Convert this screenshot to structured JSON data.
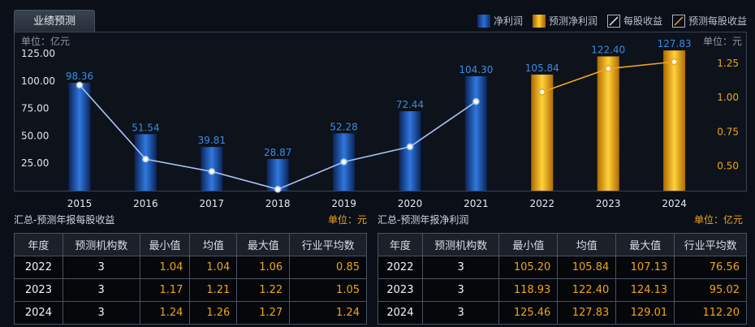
{
  "tab": {
    "label": "业绩预测"
  },
  "legend": [
    {
      "label": "净利润",
      "icon": "blue-bar-swatch"
    },
    {
      "label": "预测净利润",
      "icon": "gold-bar-swatch"
    },
    {
      "label": "每股收益",
      "icon": "white-line-swatch"
    },
    {
      "label": "预测每股收益",
      "icon": "orange-line-swatch"
    }
  ],
  "chart_data": {
    "type": "bar",
    "categories": [
      "2015",
      "2016",
      "2017",
      "2018",
      "2019",
      "2020",
      "2021",
      "2022",
      "2023",
      "2024"
    ],
    "left_unit": "单位：亿元",
    "right_unit": "单位：元",
    "left_ticks": [
      "25.00",
      "50.00",
      "75.00",
      "100.00",
      "125.00"
    ],
    "right_ticks": [
      "0.50",
      "0.75",
      "1.00",
      "1.25"
    ],
    "ylim_left": [
      0,
      125
    ],
    "ylim_right": [
      0.32,
      1.32
    ],
    "series": [
      {
        "name": "净利润",
        "kind": "bar",
        "color": "#2b6fd6",
        "values": [
          98.36,
          51.54,
          39.81,
          28.87,
          52.28,
          72.44,
          104.3,
          null,
          null,
          null
        ]
      },
      {
        "name": "预测净利润",
        "kind": "bar",
        "color": "#ffc21a",
        "values": [
          null,
          null,
          null,
          null,
          null,
          null,
          null,
          105.84,
          122.4,
          127.83
        ]
      },
      {
        "name": "每股收益",
        "kind": "line",
        "color": "#a8c4f0",
        "values": [
          1.09,
          0.55,
          0.46,
          0.33,
          0.53,
          0.64,
          0.97,
          null,
          null,
          null
        ]
      },
      {
        "name": "预测每股收益",
        "kind": "line",
        "color": "#f0a51a",
        "values": [
          null,
          null,
          null,
          null,
          null,
          null,
          null,
          1.04,
          1.21,
          1.26
        ]
      }
    ],
    "bar_labels": [
      "98.36",
      "51.54",
      "39.81",
      "28.87",
      "52.28",
      "72.44",
      "104.30",
      "105.84",
      "122.40",
      "127.83"
    ]
  },
  "eps_table": {
    "title": "汇总-预测年报每股收益",
    "unit": "单位：元",
    "headers": [
      "年度",
      "预测机构数",
      "最小值",
      "均值",
      "最大值",
      "行业平均数"
    ],
    "rows": [
      [
        "2022",
        "3",
        "1.04",
        "1.04",
        "1.06",
        "0.85"
      ],
      [
        "2023",
        "3",
        "1.17",
        "1.21",
        "1.22",
        "1.05"
      ],
      [
        "2024",
        "3",
        "1.24",
        "1.26",
        "1.27",
        "1.24"
      ]
    ]
  },
  "profit_table": {
    "title": "汇总-预测年报净利润",
    "unit": "单位：亿元",
    "headers": [
      "年度",
      "预测机构数",
      "最小值",
      "均值",
      "最大值",
      "行业平均数"
    ],
    "rows": [
      [
        "2022",
        "3",
        "105.20",
        "105.84",
        "107.13",
        "76.56"
      ],
      [
        "2023",
        "3",
        "118.93",
        "122.40",
        "124.13",
        "95.02"
      ],
      [
        "2024",
        "3",
        "125.46",
        "127.83",
        "129.01",
        "112.20"
      ]
    ]
  }
}
